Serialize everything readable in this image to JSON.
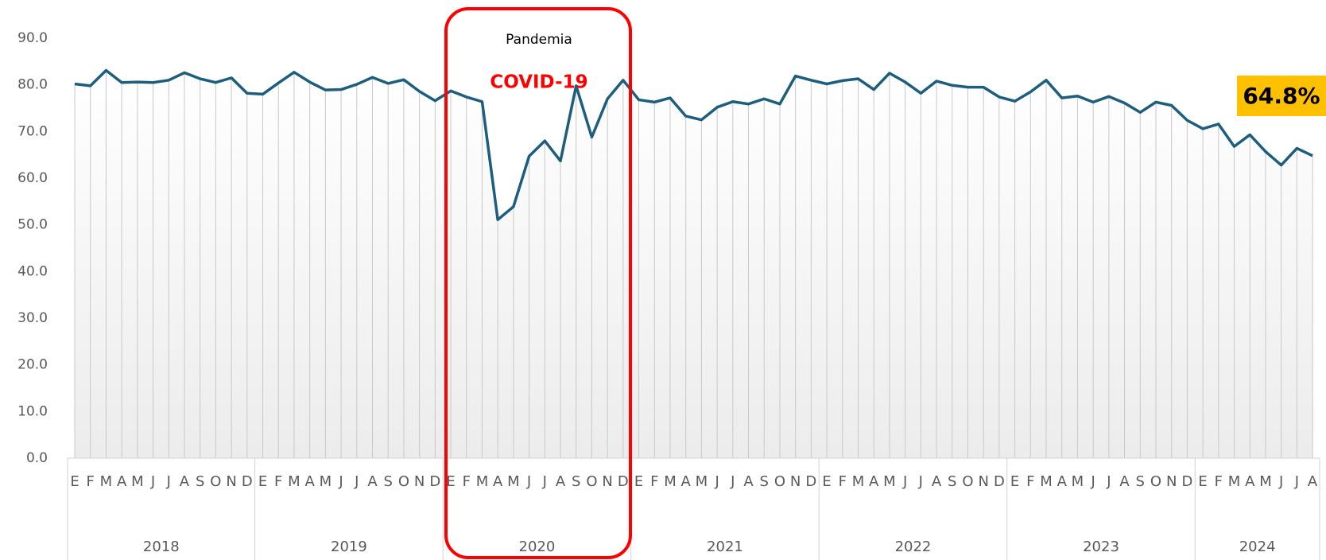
{
  "chart_data": {
    "type": "line",
    "categories": [
      "E",
      "F",
      "M",
      "A",
      "M",
      "J",
      "J",
      "A",
      "S",
      "O",
      "N",
      "D",
      "E",
      "F",
      "M",
      "A",
      "M",
      "J",
      "J",
      "A",
      "S",
      "O",
      "N",
      "D",
      "E",
      "F",
      "M",
      "A",
      "M",
      "J",
      "J",
      "A",
      "S",
      "O",
      "N",
      "D",
      "E",
      "F",
      "M",
      "A",
      "M",
      "J",
      "J",
      "A",
      "S",
      "O",
      "N",
      "D",
      "E",
      "F",
      "M",
      "A",
      "M",
      "J",
      "J",
      "A",
      "S",
      "O",
      "N",
      "D",
      "E",
      "F",
      "M",
      "A",
      "M",
      "J",
      "J",
      "A",
      "S",
      "O",
      "N",
      "D",
      "E",
      "F",
      "M",
      "A",
      "M",
      "J",
      "J",
      "A"
    ],
    "years": [
      "2018",
      "2019",
      "2020",
      "2021",
      "2022",
      "2023",
      "2024"
    ],
    "series": [
      {
        "color": "#1d5e7e",
        "values": [
          80.2,
          79.8,
          83.1,
          80.5,
          80.6,
          80.5,
          81.0,
          82.6,
          81.3,
          80.5,
          81.5,
          78.2,
          78.0,
          80.4,
          82.7,
          80.6,
          78.9,
          79.0,
          80.1,
          81.6,
          80.3,
          81.1,
          78.6,
          76.6,
          78.7,
          77.4,
          76.4,
          51.1,
          53.9,
          64.7,
          68.0,
          63.7,
          79.8,
          68.8,
          77.0,
          81.0,
          76.8,
          76.3,
          77.2,
          73.3,
          72.5,
          75.2,
          76.4,
          75.9,
          77.0,
          75.9,
          81.9,
          81.0,
          80.2,
          80.9,
          81.3,
          79.0,
          82.5,
          80.6,
          78.2,
          80.8,
          79.9,
          79.5,
          79.5,
          77.4,
          76.5,
          78.5,
          81.0,
          77.2,
          77.6,
          76.3,
          77.5,
          76.1,
          74.1,
          76.3,
          75.6,
          72.4,
          70.6,
          71.6,
          66.8,
          69.3,
          65.7,
          62.8,
          66.4,
          64.8
        ],
        "value_labels": [
          null,
          null,
          null,
          null,
          null,
          null,
          null,
          null,
          null,
          null,
          null,
          null,
          null,
          null,
          null,
          null,
          null,
          null,
          null,
          null,
          null,
          null,
          null,
          null,
          null,
          null,
          null,
          null,
          null,
          null,
          null,
          null,
          null,
          null,
          null,
          null,
          null,
          null,
          null,
          null,
          null,
          null,
          null,
          null,
          null,
          null,
          null,
          null,
          null,
          null,
          null,
          null,
          null,
          null,
          null,
          null,
          null,
          null,
          null,
          null,
          null,
          null,
          null,
          null,
          null,
          null,
          null,
          null,
          null,
          null,
          null,
          null,
          null,
          null,
          null,
          null,
          null,
          null,
          null,
          "64.8%"
        ]
      }
    ],
    "ylim": [
      0,
      90
    ],
    "yticks": [
      {
        "value": 0,
        "label": "0.0"
      },
      {
        "value": 10,
        "label": "10.0"
      },
      {
        "value": 20,
        "label": "20.0"
      },
      {
        "value": 30,
        "label": "30.0"
      },
      {
        "value": 40,
        "label": "40.0"
      },
      {
        "value": 50,
        "label": "50.0"
      },
      {
        "value": 60,
        "label": "60.0"
      },
      {
        "value": 70,
        "label": "70.0"
      },
      {
        "value": 80,
        "label": "80.0"
      },
      {
        "value": 90,
        "label": "90.0"
      }
    ],
    "annotations": [
      {
        "text": "Pandemia"
      },
      {
        "text": "COVID-19"
      }
    ]
  }
}
